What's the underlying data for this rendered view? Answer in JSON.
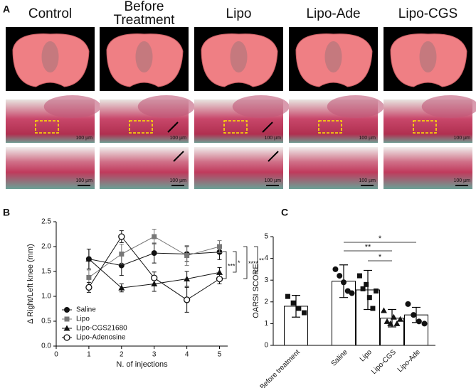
{
  "panel_a": {
    "letter": "A",
    "columns": [
      "Control",
      "Before Treatment",
      "Lipo",
      "Lipo-Ade",
      "Lipo-CGS"
    ],
    "scale_label": "100 µm"
  },
  "chart_data": [
    {
      "type": "line",
      "letter": "B",
      "xlabel": "N. of injections",
      "ylabel": "Δ Right/Left knee (mm)",
      "x": [
        1,
        2,
        3,
        4,
        5
      ],
      "xlim": [
        0,
        5.25
      ],
      "xticks": [
        0,
        1,
        2,
        3,
        4,
        5
      ],
      "ylim": [
        0,
        2.5
      ],
      "yticks": [
        {
          "value": 0,
          "label": "0.0"
        },
        0.5,
        {
          "value": 1,
          "label": "1.0"
        },
        1.5,
        {
          "value": 2,
          "label": "2.0"
        },
        2.5
      ],
      "legend": "lower left",
      "series": [
        {
          "name": "Saline",
          "color": "#111111",
          "marker": "circle-filled",
          "values": [
            1.75,
            1.62,
            1.87,
            1.85,
            1.89
          ],
          "errors": [
            0.2,
            0.2,
            0.2,
            0.15,
            0.15
          ]
        },
        {
          "name": "Lipo",
          "color": "#777777",
          "marker": "square",
          "values": [
            1.38,
            1.85,
            2.2,
            1.82,
            2.0
          ],
          "errors": [
            0.15,
            0.2,
            0.15,
            0.2,
            0.12
          ]
        },
        {
          "name": "Lipo-CGS21680",
          "color": "#111111",
          "marker": "triangle",
          "values": [
            1.75,
            1.17,
            1.25,
            1.35,
            1.48
          ],
          "errors": [
            0.2,
            0.08,
            0.15,
            0.15,
            0.1
          ]
        },
        {
          "name": "Lipo-Adenosine",
          "color": "#111111",
          "marker": "circle-open",
          "values": [
            1.18,
            2.2,
            1.37,
            0.93,
            1.35
          ],
          "errors": [
            0.1,
            0.12,
            0.12,
            0.25,
            0.1
          ]
        }
      ],
      "annotations": [
        "***",
        "*",
        "****",
        "**"
      ]
    },
    {
      "type": "bar",
      "letter": "C",
      "ylabel": "OARSI SCORE",
      "categories": [
        "Before treatment",
        "Saline",
        "Lipo",
        "Lipo-CGS",
        "Lipo-Ade"
      ],
      "values": [
        1.8,
        2.95,
        2.55,
        1.25,
        1.4
      ],
      "errors": [
        0.5,
        0.75,
        0.9,
        0.4,
        0.35
      ],
      "points": [
        [
          2.25,
          1.95,
          1.7,
          1.5
        ],
        [
          3.5,
          3.2,
          2.9,
          2.5,
          2.4
        ],
        [
          3.2,
          2.6,
          2.8,
          2.2,
          1.7,
          2.5
        ],
        [
          1.6,
          1.1,
          1.0,
          1.3,
          1.0,
          1.2
        ],
        [
          1.9,
          1.4,
          1.1,
          1.0
        ]
      ],
      "color": "#ffffff",
      "ylim": [
        0,
        5
      ],
      "yticks": [
        0,
        1,
        2,
        3,
        4,
        5
      ],
      "annotations": [
        "*",
        "**",
        "*"
      ]
    }
  ]
}
